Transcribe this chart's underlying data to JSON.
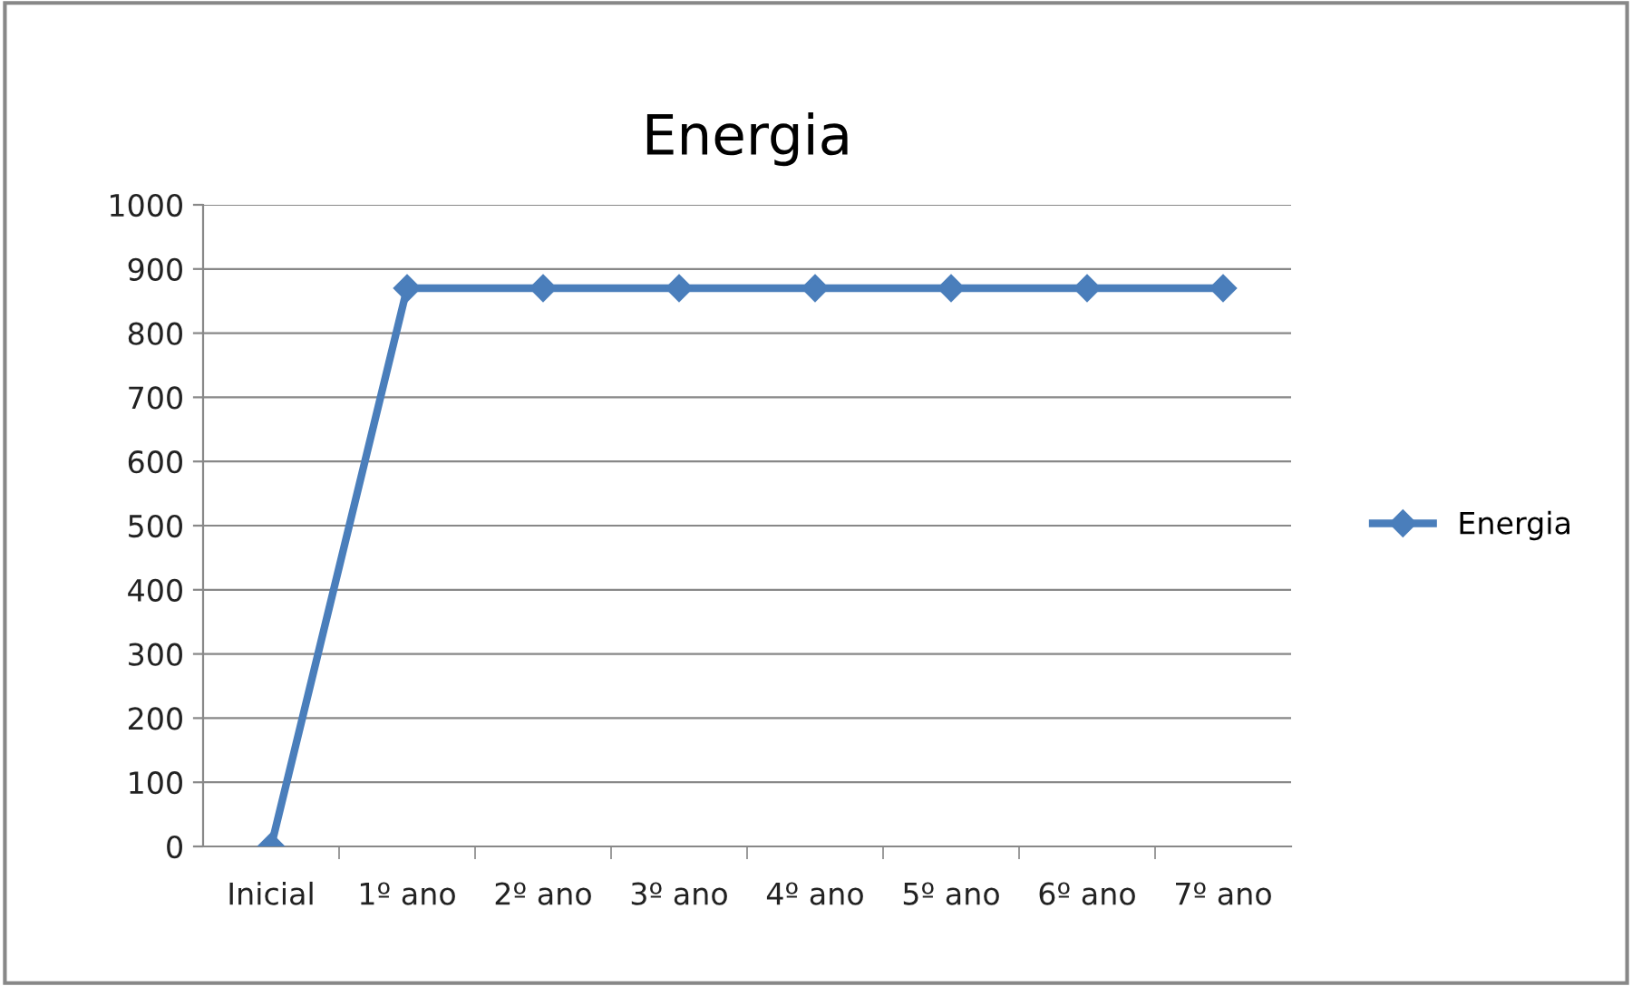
{
  "chart_data": {
    "type": "line",
    "title": "Energia",
    "categories": [
      "Inicial",
      "1º ano",
      "2º ano",
      "3º ano",
      "4º ano",
      "5º ano",
      "6º ano",
      "7º ano"
    ],
    "series": [
      {
        "name": "Energia",
        "color": "#4a7ebb",
        "values": [
          0,
          870,
          870,
          870,
          870,
          870,
          870,
          870
        ]
      }
    ],
    "ylim": [
      0,
      1000
    ],
    "yticks": [
      0,
      100,
      200,
      300,
      400,
      500,
      600,
      700,
      800,
      900,
      1000
    ],
    "grid": "y",
    "legend": "right",
    "marker": "diamond",
    "line_style": "solid"
  }
}
